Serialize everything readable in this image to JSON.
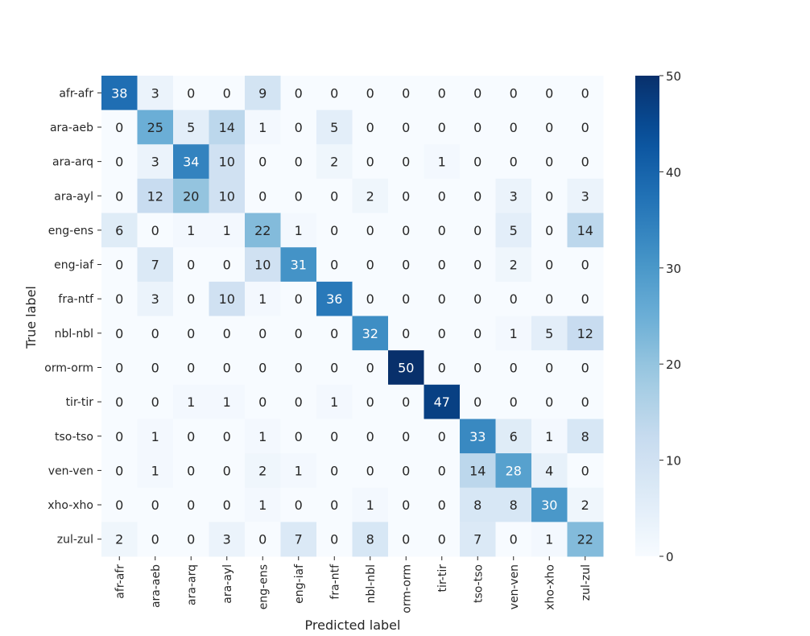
{
  "chart_data": {
    "type": "heatmap",
    "xlabel": "Predicted label",
    "ylabel": "True label",
    "x_categories": [
      "afr-afr",
      "ara-aeb",
      "ara-arq",
      "ara-ayl",
      "eng-ens",
      "eng-iaf",
      "fra-ntf",
      "nbl-nbl",
      "orm-orm",
      "tir-tir",
      "tso-tso",
      "ven-ven",
      "xho-xho",
      "zul-zul"
    ],
    "y_categories": [
      "afr-afr",
      "ara-aeb",
      "ara-arq",
      "ara-ayl",
      "eng-ens",
      "eng-iaf",
      "fra-ntf",
      "nbl-nbl",
      "orm-orm",
      "tir-tir",
      "tso-tso",
      "ven-ven",
      "xho-xho",
      "zul-zul"
    ],
    "values": [
      [
        38,
        3,
        0,
        0,
        9,
        0,
        0,
        0,
        0,
        0,
        0,
        0,
        0,
        0
      ],
      [
        0,
        25,
        5,
        14,
        1,
        0,
        5,
        0,
        0,
        0,
        0,
        0,
        0,
        0
      ],
      [
        0,
        3,
        34,
        10,
        0,
        0,
        2,
        0,
        0,
        1,
        0,
        0,
        0,
        0
      ],
      [
        0,
        12,
        20,
        10,
        0,
        0,
        0,
        2,
        0,
        0,
        0,
        3,
        0,
        3
      ],
      [
        6,
        0,
        1,
        1,
        22,
        1,
        0,
        0,
        0,
        0,
        0,
        5,
        0,
        14
      ],
      [
        0,
        7,
        0,
        0,
        10,
        31,
        0,
        0,
        0,
        0,
        0,
        2,
        0,
        0
      ],
      [
        0,
        3,
        0,
        10,
        1,
        0,
        36,
        0,
        0,
        0,
        0,
        0,
        0,
        0
      ],
      [
        0,
        0,
        0,
        0,
        0,
        0,
        0,
        32,
        0,
        0,
        0,
        1,
        5,
        12
      ],
      [
        0,
        0,
        0,
        0,
        0,
        0,
        0,
        0,
        50,
        0,
        0,
        0,
        0,
        0
      ],
      [
        0,
        0,
        1,
        1,
        0,
        0,
        1,
        0,
        0,
        47,
        0,
        0,
        0,
        0
      ],
      [
        0,
        1,
        0,
        0,
        1,
        0,
        0,
        0,
        0,
        0,
        33,
        6,
        1,
        8
      ],
      [
        0,
        1,
        0,
        0,
        2,
        1,
        0,
        0,
        0,
        0,
        14,
        28,
        4,
        0
      ],
      [
        0,
        0,
        0,
        0,
        1,
        0,
        0,
        1,
        0,
        0,
        8,
        8,
        30,
        2
      ],
      [
        2,
        0,
        0,
        3,
        0,
        7,
        0,
        8,
        0,
        0,
        7,
        0,
        1,
        22
      ]
    ],
    "colorbar": {
      "min": 0,
      "max": 50,
      "ticks": [
        0,
        10,
        20,
        30,
        40,
        50
      ],
      "colormap": "Blues"
    },
    "annotation_colors": {
      "dark": "#262626",
      "light": "#ffffff"
    }
  }
}
